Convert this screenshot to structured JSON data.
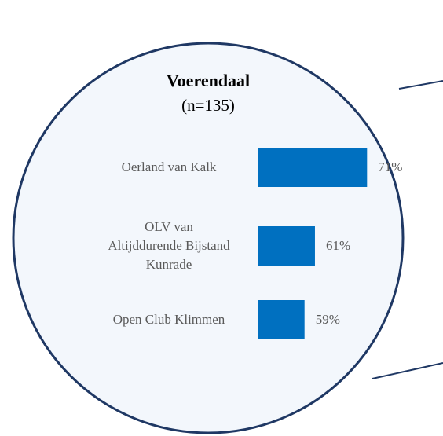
{
  "chart_data": {
    "type": "bar",
    "orientation": "horizontal",
    "title": "Voerendaal",
    "subtitle": "(n=135)",
    "categories": [
      "Oerland van Kalk",
      "OLV van\nAltijddurende Bijstand\nKunrade",
      "Open Club Klimmen"
    ],
    "values": [
      71,
      61,
      59
    ],
    "value_labels": [
      "71%",
      "61%",
      "59%"
    ],
    "color": "#0070c0",
    "xlim": [
      50,
      80
    ]
  }
}
